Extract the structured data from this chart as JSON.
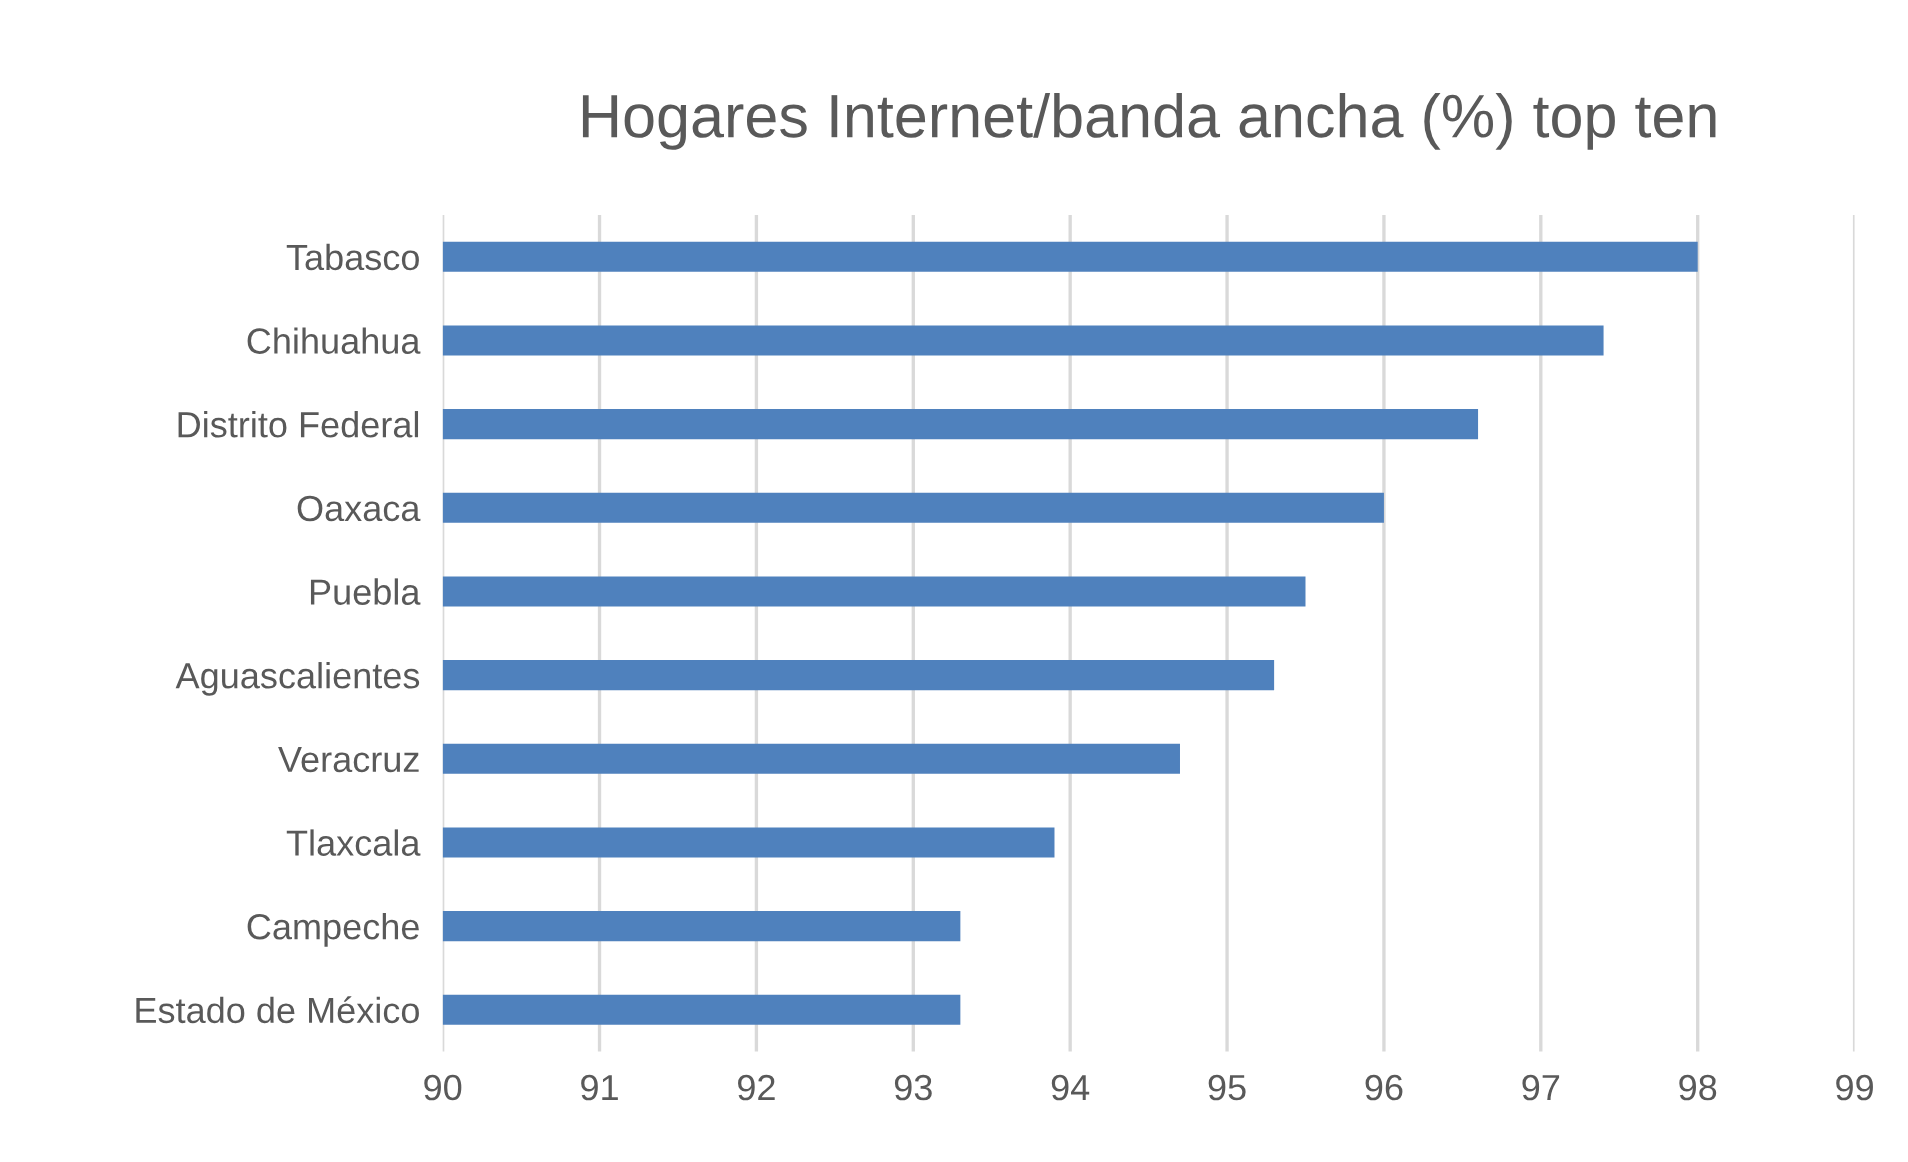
{
  "chart_data": {
    "type": "bar",
    "orientation": "horizontal",
    "title": "Hogares Internet/banda ancha (%) top ten",
    "categories": [
      "Tabasco",
      "Chihuahua",
      "Distrito Federal",
      "Oaxaca",
      "Puebla",
      "Aguascalientes",
      "Veracruz",
      "Tlaxcala",
      "Campeche",
      "Estado de México"
    ],
    "values": [
      98.0,
      97.4,
      96.6,
      96.0,
      95.5,
      95.3,
      94.7,
      93.9,
      93.3,
      93.3
    ],
    "color": "#4f81bd",
    "xlim": [
      90,
      99
    ],
    "xticks": [
      90,
      91,
      92,
      93,
      94,
      95,
      96,
      97,
      98,
      99
    ],
    "grid": "x"
  }
}
